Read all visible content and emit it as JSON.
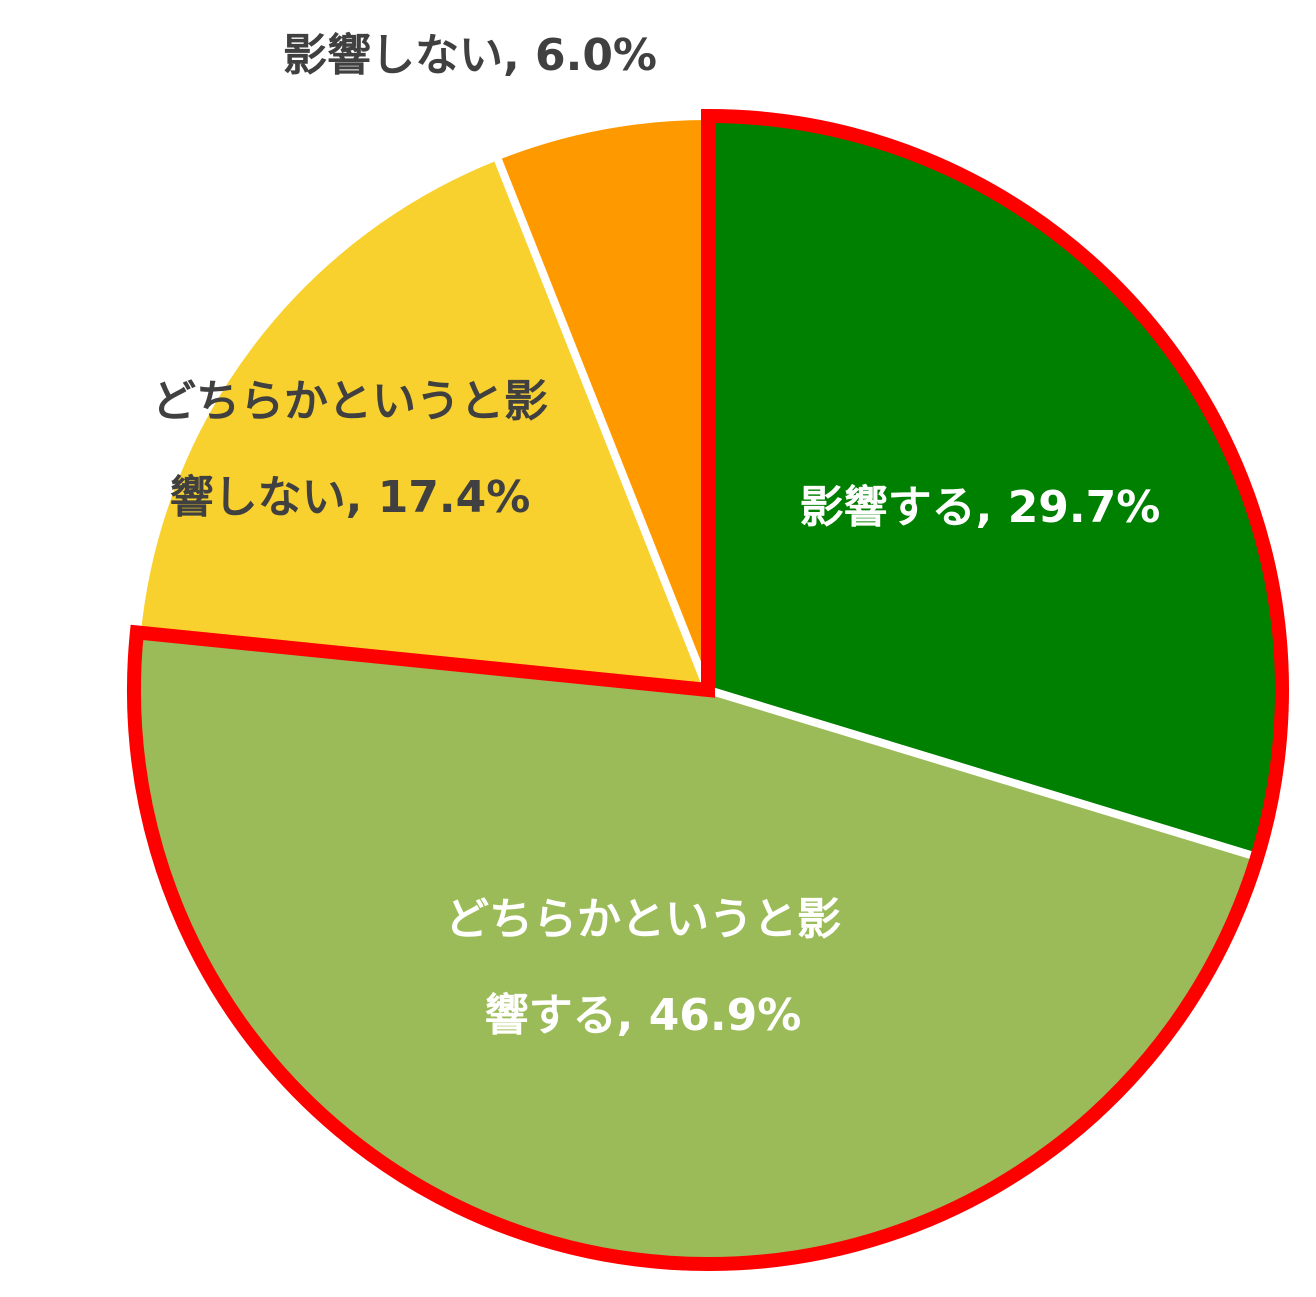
{
  "chart_data": {
    "type": "pie",
    "start_angle_deg": 0,
    "direction": "clockwise",
    "slices": [
      {
        "label_lines": [
          "影響する, 29.7%"
        ],
        "category": "影響する",
        "value": 29.7,
        "color": "#008000",
        "label_color": "#ffffff",
        "highlighted": true
      },
      {
        "label_lines": [
          "どちらかというと影",
          "響する, 46.9%"
        ],
        "category": "どちらかというと影響する",
        "value": 46.9,
        "color": "#9bbb59",
        "label_color": "#ffffff",
        "highlighted": true
      },
      {
        "label_lines": [
          "どちらかというと影",
          "響しない, 17.4%"
        ],
        "category": "どちらかというと影響しない",
        "value": 17.4,
        "color": "#f9d12e",
        "label_color": "#404040",
        "highlighted": false
      },
      {
        "label_lines": [
          "影響しない, 6.0%"
        ],
        "category": "影響しない",
        "value": 6.0,
        "color": "#ff9900",
        "label_color": "#404040",
        "highlighted": false
      }
    ],
    "highlight_color": "#ff0000"
  }
}
